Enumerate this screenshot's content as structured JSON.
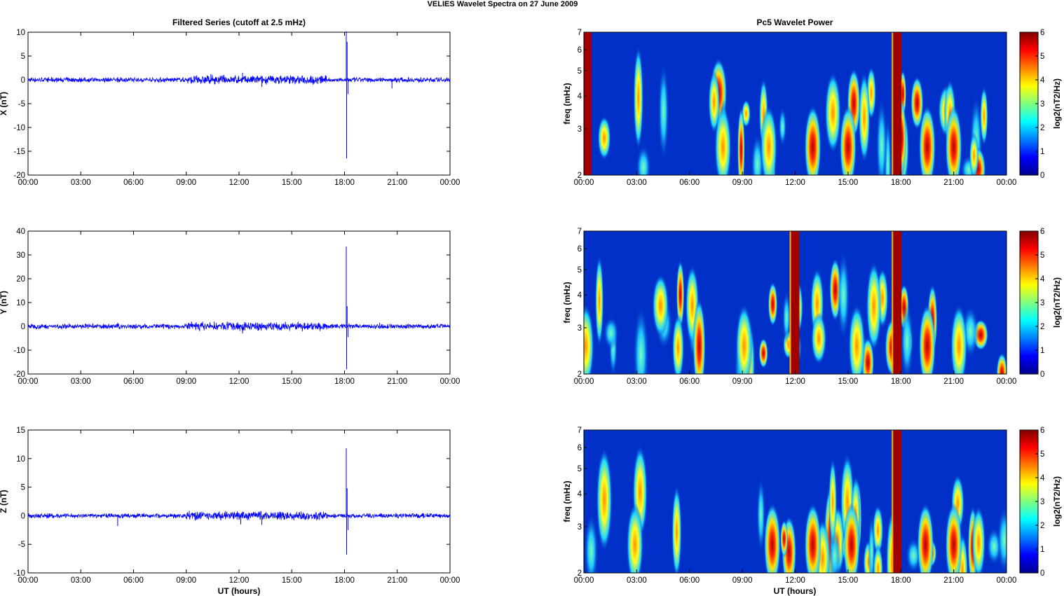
{
  "figure_title": "VELIES Wavelet Spectra on 27 June      2009",
  "left_title": "Filtered Series (cutoff at 2.5 mHz)",
  "right_title": "Pc5 Wavelet Power",
  "time_ticks": [
    "00:00",
    "03:00",
    "06:00",
    "09:00",
    "12:00",
    "15:00",
    "18:00",
    "21:00",
    "00:00"
  ],
  "xlabel": "UT (hours)",
  "colors": {
    "trace": "#0000ff",
    "axis": "#000000"
  },
  "chart_data": [
    {
      "type": "line",
      "ylabel": "X (nT)",
      "ylim": [
        -20,
        10
      ],
      "yticks": [
        10,
        5,
        0,
        -5,
        -10,
        -15,
        -20
      ],
      "x_range_hours": [
        0,
        24
      ],
      "series": [
        {
          "x": [
            0,
            5.1,
            10.4,
            12.2,
            13.3,
            18.1,
            18.12,
            18.15,
            18.2,
            20.7,
            24
          ],
          "y": [
            0,
            0.6,
            1.2,
            1.5,
            -1.5,
            10.2,
            -16.5,
            8,
            -3,
            -1.8,
            0
          ]
        }
      ]
    },
    {
      "type": "line",
      "ylabel": "Y (nT)",
      "ylim": [
        -20,
        40
      ],
      "yticks": [
        40,
        30,
        20,
        10,
        0,
        -10,
        -20
      ],
      "x_range_hours": [
        0,
        24
      ],
      "series": [
        {
          "x": [
            0,
            5.1,
            9.3,
            12.2,
            18.1,
            18.12,
            18.15,
            18.2,
            20,
            24
          ],
          "y": [
            0,
            1.5,
            2,
            -3,
            33.5,
            -18,
            8.5,
            -4.5,
            1.5,
            0
          ]
        }
      ]
    },
    {
      "type": "line",
      "ylabel": "Z (nT)",
      "ylim": [
        -10,
        15
      ],
      "yticks": [
        15,
        10,
        5,
        0,
        -5,
        -10
      ],
      "x_range_hours": [
        0,
        24
      ],
      "series": [
        {
          "x": [
            0,
            5.1,
            12.1,
            13.3,
            18.1,
            18.12,
            18.15,
            18.2,
            24
          ],
          "y": [
            0,
            -1.8,
            -1.5,
            -1.6,
            11.8,
            -6.8,
            4.8,
            -2.5,
            0
          ]
        }
      ]
    },
    {
      "type": "heatmap",
      "ylabel": "freq (mHz)",
      "ylim": [
        2,
        7
      ],
      "yticks": [
        7,
        6,
        5,
        4,
        3,
        2
      ],
      "colorbar": {
        "label": "log2(nT2/Hz)",
        "range": [
          0,
          6
        ],
        "ticks": [
          6,
          5,
          4,
          3,
          2,
          1,
          0
        ]
      },
      "features_hours": [
        [
          0.2,
          6
        ],
        [
          7.9,
          3
        ],
        [
          10.5,
          4
        ],
        [
          13,
          4.5
        ],
        [
          15,
          5
        ],
        [
          17.8,
          6
        ],
        [
          19.5,
          5
        ],
        [
          21,
          4.5
        ]
      ]
    },
    {
      "type": "heatmap",
      "ylabel": "freq (mHz)",
      "ylim": [
        2,
        7
      ],
      "yticks": [
        7,
        6,
        5,
        4,
        3,
        2
      ],
      "colorbar": {
        "label": "log2(nT2/Hz)",
        "range": [
          0,
          6
        ],
        "ticks": [
          6,
          5,
          4,
          3,
          2,
          1,
          0
        ]
      },
      "features_hours": [
        [
          0.1,
          3
        ],
        [
          9.1,
          4
        ],
        [
          12,
          6
        ],
        [
          15.5,
          3.5
        ],
        [
          17.8,
          6
        ],
        [
          19.5,
          5
        ],
        [
          21.3,
          4
        ]
      ]
    },
    {
      "type": "heatmap",
      "ylabel": "freq (mHz)",
      "ylim": [
        2,
        7
      ],
      "yticks": [
        7,
        6,
        5,
        4,
        3,
        2
      ],
      "colorbar": {
        "label": "log2(nT2/Hz)",
        "range": [
          0,
          6
        ],
        "ticks": [
          6,
          5,
          4,
          3,
          2,
          1,
          0
        ]
      },
      "features_hours": [
        [
          2.9,
          3
        ],
        [
          10.7,
          5
        ],
        [
          13,
          4.5
        ],
        [
          15.2,
          5
        ],
        [
          17.8,
          6
        ],
        [
          19.4,
          5
        ],
        [
          21,
          4.5
        ]
      ]
    }
  ]
}
